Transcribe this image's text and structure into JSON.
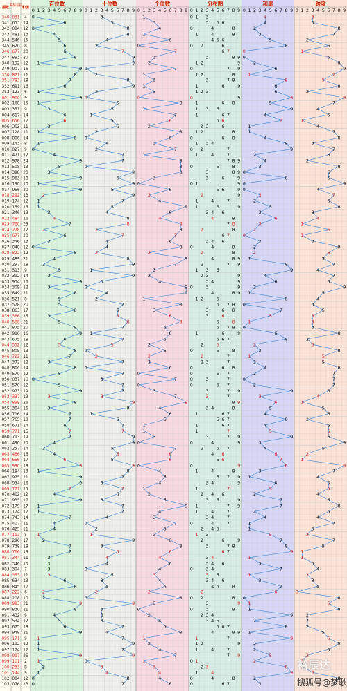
{
  "chart_data": {
    "type": "table",
    "headers": {
      "col_period": "期数",
      "col_number": "开奖号码",
      "col_sum": "和值",
      "panels": [
        "百位数",
        "十位数",
        "个位数",
        "分布图",
        "和尾",
        "跨度"
      ]
    },
    "digits": [
      "0",
      "1",
      "2",
      "3",
      "4",
      "5",
      "6",
      "7",
      "8",
      "9"
    ],
    "rows": [
      {
        "p": "340",
        "n": "031",
        "s": "4",
        "red": true
      },
      {
        "p": "341",
        "n": "653",
        "s": "14"
      },
      {
        "p": "342",
        "n": "084",
        "s": "12"
      },
      {
        "p": "343",
        "n": "481",
        "s": "13"
      },
      {
        "p": "344",
        "n": "546",
        "s": "15"
      },
      {
        "p": "345",
        "n": "620",
        "s": "8"
      },
      {
        "p": "346",
        "n": "677",
        "s": "20",
        "red": true
      },
      {
        "p": "347",
        "n": "893",
        "s": "20"
      },
      {
        "p": "348",
        "n": "192",
        "s": "12"
      },
      {
        "p": "349",
        "n": "907",
        "s": "16"
      },
      {
        "p": "350",
        "n": "821",
        "s": "11",
        "red": true
      },
      {
        "p": "351",
        "n": "783",
        "s": "18",
        "red": true
      },
      {
        "p": "352",
        "n": "691",
        "s": "16"
      },
      {
        "p": "353",
        "n": "123",
        "s": "6"
      },
      {
        "p": "001",
        "n": "900",
        "s": "9",
        "red": true
      },
      {
        "p": "002",
        "n": "168",
        "s": "15"
      },
      {
        "p": "003",
        "n": "351",
        "s": "9"
      },
      {
        "p": "004",
        "n": "617",
        "s": "14"
      },
      {
        "p": "005",
        "n": "656",
        "s": "17",
        "red": true
      },
      {
        "p": "006",
        "n": "362",
        "s": "11"
      },
      {
        "p": "007",
        "n": "128",
        "s": "11"
      },
      {
        "p": "008",
        "n": "806",
        "s": "14"
      },
      {
        "p": "009",
        "n": "143",
        "s": "8"
      },
      {
        "p": "010",
        "n": "027",
        "s": "9"
      },
      {
        "p": "011",
        "n": "471",
        "s": "12"
      },
      {
        "p": "012",
        "n": "978",
        "s": "24"
      },
      {
        "p": "013",
        "n": "508",
        "s": "13"
      },
      {
        "p": "014",
        "n": "398",
        "s": "20"
      },
      {
        "p": "015",
        "n": "963",
        "s": "18"
      },
      {
        "p": "016",
        "n": "190",
        "s": "10"
      },
      {
        "p": "017",
        "n": "956",
        "s": "20"
      },
      {
        "p": "018",
        "n": "292",
        "s": "13",
        "red": true
      },
      {
        "p": "019",
        "n": "174",
        "s": "12"
      },
      {
        "p": "020",
        "n": "159",
        "s": "15"
      },
      {
        "p": "021",
        "n": "346",
        "s": "13"
      },
      {
        "p": "022",
        "n": "484",
        "s": "16",
        "red": true
      },
      {
        "p": "023",
        "n": "788",
        "s": "23",
        "red": true
      },
      {
        "p": "024",
        "n": "228",
        "s": "12",
        "red": true
      },
      {
        "p": "025",
        "n": "677",
        "s": "20",
        "red": true
      },
      {
        "p": "026",
        "n": "346",
        "s": "13"
      },
      {
        "p": "027",
        "n": "048",
        "s": "12"
      },
      {
        "p": "028",
        "n": "822",
        "s": "12",
        "red": true
      },
      {
        "p": "029",
        "n": "489",
        "s": "21"
      },
      {
        "p": "030",
        "n": "297",
        "s": "18"
      },
      {
        "p": "031",
        "n": "513",
        "s": "9"
      },
      {
        "p": "032",
        "n": "392",
        "s": "14"
      },
      {
        "p": "033",
        "n": "934",
        "s": "16"
      },
      {
        "p": "034",
        "n": "309",
        "s": "12"
      },
      {
        "p": "035",
        "n": "849",
        "s": "21"
      },
      {
        "p": "036",
        "n": "521",
        "s": "8"
      },
      {
        "p": "037",
        "n": "578",
        "s": "20"
      },
      {
        "p": "038",
        "n": "863",
        "s": "17"
      },
      {
        "p": "039",
        "n": "366",
        "s": "15",
        "red": true
      },
      {
        "p": "040",
        "n": "588",
        "s": "21",
        "red": true
      },
      {
        "p": "041",
        "n": "875",
        "s": "20"
      },
      {
        "p": "042",
        "n": "916",
        "s": "16"
      },
      {
        "p": "043",
        "n": "675",
        "s": "18"
      },
      {
        "p": "044",
        "n": "552",
        "s": "12",
        "red": true
      },
      {
        "p": "045",
        "n": "805",
        "s": "13"
      },
      {
        "p": "046",
        "n": "722",
        "s": "11",
        "red": true
      },
      {
        "p": "047",
        "n": "372",
        "s": "12"
      },
      {
        "p": "048",
        "n": "806",
        "s": "14"
      },
      {
        "p": "049",
        "n": "570",
        "s": "12"
      },
      {
        "p": "050",
        "n": "037",
        "s": "10"
      },
      {
        "p": "051",
        "n": "570",
        "s": "12"
      },
      {
        "p": "052",
        "n": "973",
        "s": "19"
      },
      {
        "p": "053",
        "n": "337",
        "s": "13",
        "red": true
      },
      {
        "p": "054",
        "n": "899",
        "s": "26",
        "red": true
      },
      {
        "p": "055",
        "n": "384",
        "s": "15"
      },
      {
        "p": "056",
        "n": "716",
        "s": "14"
      },
      {
        "p": "057",
        "n": "765",
        "s": "18"
      },
      {
        "p": "058",
        "n": "671",
        "s": "14"
      },
      {
        "p": "059",
        "n": "771",
        "s": "15",
        "red": true
      },
      {
        "p": "060",
        "n": "793",
        "s": "19"
      },
      {
        "p": "061",
        "n": "490",
        "s": "13"
      },
      {
        "p": "062",
        "n": "257",
        "s": "14"
      },
      {
        "p": "063",
        "n": "466",
        "s": "16",
        "red": true
      },
      {
        "p": "064",
        "n": "656",
        "s": "17",
        "red": true
      },
      {
        "p": "065",
        "n": "990",
        "s": "18",
        "red": true
      },
      {
        "p": "066",
        "n": "184",
        "s": "13"
      },
      {
        "p": "067",
        "n": "975",
        "s": "21"
      },
      {
        "p": "068",
        "n": "934",
        "s": "16"
      },
      {
        "p": "069",
        "n": "771",
        "s": "15",
        "red": true
      },
      {
        "p": "070",
        "n": "462",
        "s": "12"
      },
      {
        "p": "071",
        "n": "935",
        "s": "17"
      },
      {
        "p": "072",
        "n": "179",
        "s": "17"
      },
      {
        "p": "073",
        "n": "174",
        "s": "12"
      },
      {
        "p": "074",
        "n": "743",
        "s": "14"
      },
      {
        "p": "075",
        "n": "407",
        "s": "11"
      },
      {
        "p": "076",
        "n": "425",
        "s": "11"
      },
      {
        "p": "077",
        "n": "113",
        "s": "5",
        "red": true
      },
      {
        "p": "078",
        "n": "296",
        "s": "17"
      },
      {
        "p": "079",
        "n": "738",
        "s": "18"
      },
      {
        "p": "080",
        "n": "766",
        "s": "19",
        "red": true
      },
      {
        "p": "081",
        "n": "344",
        "s": "11",
        "red": true
      },
      {
        "p": "082",
        "n": "346",
        "s": "13"
      },
      {
        "p": "083",
        "n": "304",
        "s": "7"
      },
      {
        "p": "084",
        "n": "353",
        "s": "11",
        "red": true
      },
      {
        "p": "085",
        "n": "634",
        "s": "13"
      },
      {
        "p": "086",
        "n": "845",
        "s": "17"
      },
      {
        "p": "087",
        "n": "222",
        "s": "6",
        "red": true
      },
      {
        "p": "088",
        "n": "208",
        "s": "10"
      },
      {
        "p": "089",
        "n": "993",
        "s": "21",
        "red": true
      },
      {
        "p": "090",
        "n": "830",
        "s": "11"
      },
      {
        "p": "091",
        "n": "432",
        "s": "9"
      },
      {
        "p": "092",
        "n": "534",
        "s": "12"
      },
      {
        "p": "093",
        "n": "675",
        "s": "18"
      },
      {
        "p": "094",
        "n": "948",
        "s": "21"
      },
      {
        "p": "095",
        "n": "171",
        "s": "9",
        "red": true
      },
      {
        "p": "096",
        "n": "192",
        "s": "12"
      },
      {
        "p": "097",
        "n": "174",
        "s": "12"
      },
      {
        "p": "098",
        "n": "997",
        "s": "25",
        "red": true
      },
      {
        "p": "099",
        "n": "101",
        "s": "2",
        "red": true
      },
      {
        "p": "100",
        "n": "233",
        "s": "8",
        "red": true
      },
      {
        "p": "101",
        "n": "144",
        "s": "9",
        "red": true
      },
      {
        "p": "102",
        "n": "084",
        "s": "12"
      },
      {
        "p": "103",
        "n": "076",
        "s": "13"
      }
    ],
    "colors": {
      "panel_bg": [
        "#d9f2dc",
        "#eeeeea",
        "#f8d9e2",
        "#d6ece4",
        "#d6d6f6",
        "#fbe3d7"
      ],
      "line": "#3a86d6",
      "red": "#e02020",
      "title_red": "#cc2200",
      "grid": "#c8c8c8",
      "period_red": "#e02020"
    }
  },
  "watermark": {
    "brand": "裕辰达",
    "source": "搜狐号@梦耿"
  }
}
